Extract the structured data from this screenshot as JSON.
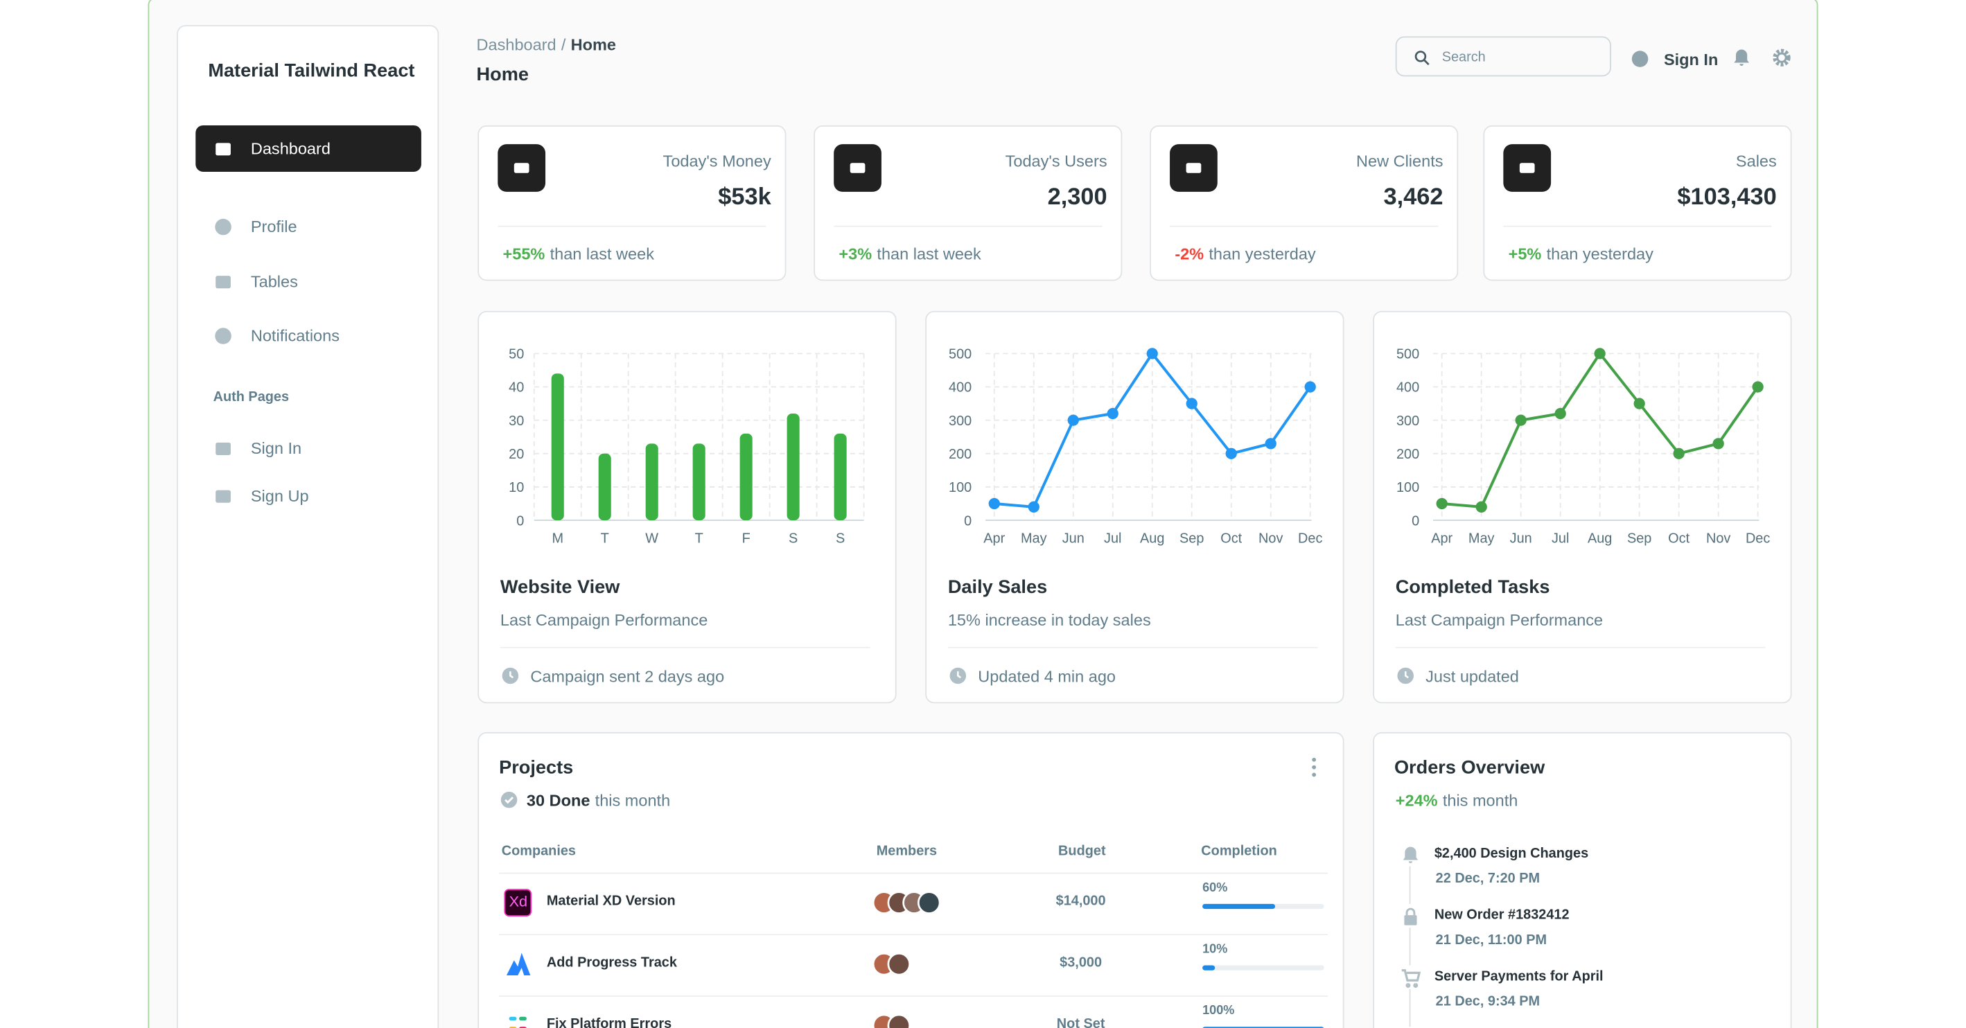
{
  "sidebar": {
    "brand": "Material Tailwind React",
    "nav": [
      "Dashboard",
      "Profile",
      "Tables",
      "Notifications"
    ],
    "section": "Auth Pages",
    "auth_nav": [
      "Sign In",
      "Sign Up"
    ]
  },
  "header": {
    "breadcrumb": [
      "Dashboard",
      "/",
      "Home"
    ],
    "title": "Home",
    "search": "Search",
    "sign_in": "Sign In"
  },
  "stats": [
    {
      "label": "Today's Money",
      "value": "$53k",
      "change": "+55%",
      "change_color": "#4caf50",
      "note": "than last week"
    },
    {
      "label": "Today's Users",
      "value": "2,300",
      "change": "+3%",
      "change_color": "#4caf50",
      "note": "than last week"
    },
    {
      "label": "New Clients",
      "value": "3,462",
      "change": "-2%",
      "change_color": "#f44336",
      "note": "than yesterday"
    },
    {
      "label": "Sales",
      "value": "$103,430",
      "change": "+5%",
      "change_color": "#4caf50",
      "note": "than yesterday"
    }
  ],
  "chart_data": [
    {
      "type": "bar",
      "title": "Website View",
      "subtitle": "Last Campaign Performance",
      "footer": "Campaign sent 2 days ago",
      "categories": [
        "M",
        "T",
        "W",
        "T",
        "F",
        "S",
        "S"
      ],
      "values": [
        44,
        20,
        23,
        23,
        26,
        32,
        26
      ],
      "color": "#3bb143",
      "ylim": [
        0,
        50
      ],
      "yticks": [
        0,
        10,
        20,
        30,
        40,
        50
      ],
      "grid": true
    },
    {
      "type": "line",
      "title": "Daily Sales",
      "subtitle": "15% increase in today sales",
      "footer": "Updated 4 min ago",
      "categories": [
        "Apr",
        "May",
        "Jun",
        "Jul",
        "Aug",
        "Sep",
        "Oct",
        "Nov",
        "Dec"
      ],
      "values": [
        50,
        40,
        300,
        320,
        500,
        350,
        200,
        230,
        400
      ],
      "color": "#2196f3",
      "ylim": [
        0,
        500
      ],
      "yticks": [
        0,
        100,
        200,
        300,
        400,
        500
      ],
      "grid": true
    },
    {
      "type": "line",
      "title": "Completed Tasks",
      "subtitle": "Last Campaign Performance",
      "footer": "Just updated",
      "categories": [
        "Apr",
        "May",
        "Jun",
        "Jul",
        "Aug",
        "Sep",
        "Oct",
        "Nov",
        "Dec"
      ],
      "values": [
        50,
        40,
        300,
        320,
        500,
        350,
        200,
        230,
        400
      ],
      "color": "#43a047",
      "ylim": [
        0,
        500
      ],
      "yticks": [
        0,
        100,
        200,
        300,
        400,
        500
      ],
      "grid": true
    }
  ],
  "projects": {
    "title": "Projects",
    "done": "30 Done",
    "period": "this month",
    "columns": [
      "Companies",
      "Members",
      "Budget",
      "Completion"
    ],
    "rows": [
      {
        "name": "Material XD Version",
        "logo_text": "Xd",
        "budget": "$14,000",
        "completion": 60,
        "completion_label": "60%"
      },
      {
        "name": "Add Progress Track",
        "budget": "$3,000",
        "completion": 10,
        "completion_label": "10%"
      },
      {
        "name": "Fix Platform Errors",
        "budget": "Not Set",
        "completion": 100,
        "completion_label": "100%"
      }
    ]
  },
  "orders": {
    "title": "Orders Overview",
    "change": "+24%",
    "period": "this month",
    "items": [
      {
        "title": "$2,400 Design Changes",
        "date": "22 Dec, 7:20 PM"
      },
      {
        "title": "New Order #1832412",
        "date": "21 Dec, 11:00 PM"
      },
      {
        "title": "Server Payments for April",
        "date": "21 Dec, 9:34 PM"
      }
    ]
  }
}
